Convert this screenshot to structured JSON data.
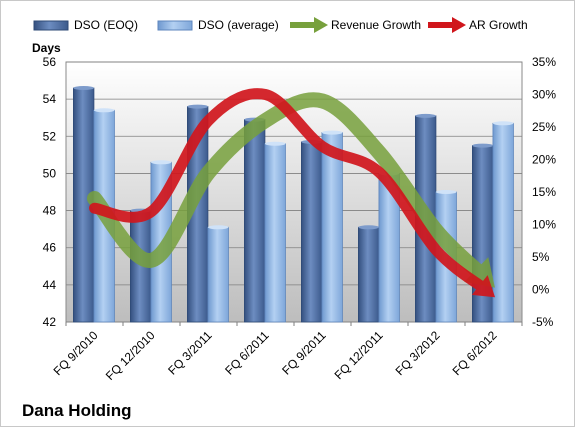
{
  "chart_data": {
    "type": "bar",
    "company": "Dana Holding",
    "y_left_label": "Days",
    "categories": [
      "FQ 9/2010",
      "FQ 12/2010",
      "FQ 3/2011",
      "FQ 6/2011",
      "FQ 9/2011",
      "FQ 12/2011",
      "FQ 3/2012",
      "FQ 6/2012"
    ],
    "bar_series": [
      {
        "name": "DSO (EOQ)",
        "values": [
          54.6,
          48.0,
          53.6,
          52.9,
          51.7,
          47.1,
          53.1,
          51.5
        ],
        "color": "#4f6fa3"
      },
      {
        "name": "DSO (average)",
        "values": [
          53.4,
          50.6,
          47.1,
          51.6,
          52.2,
          50.0,
          49.0,
          52.7
        ],
        "color": "#8fb4e3"
      }
    ],
    "line_series": [
      {
        "name": "Revenue Growth",
        "values": [
          14.0,
          4.5,
          18.0,
          26.0,
          29.0,
          21.0,
          9.0,
          0.5
        ],
        "color": "#77a03c"
      },
      {
        "name": "AR Growth",
        "values": [
          12.5,
          12.0,
          26.0,
          30.0,
          22.0,
          18.0,
          6.0,
          -1.0
        ],
        "color": "#d0161c"
      }
    ],
    "y_left": {
      "min": 42,
      "max": 56,
      "step": 2
    },
    "y_right": {
      "min": -5,
      "max": 35,
      "step": 5,
      "suffix": "%"
    },
    "grid": true,
    "legend_position": "top"
  }
}
